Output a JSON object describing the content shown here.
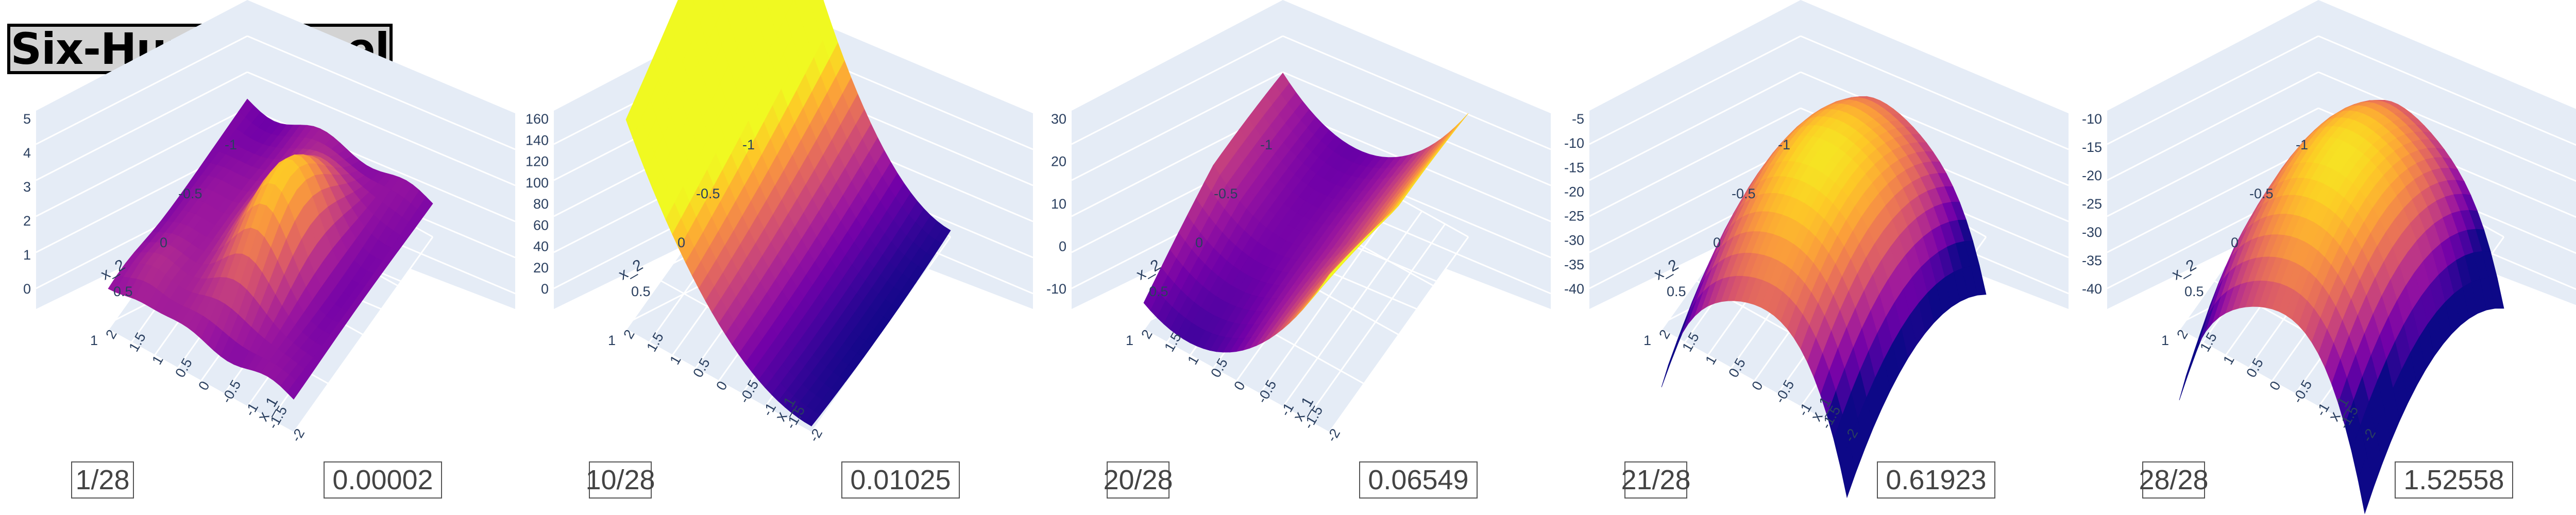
{
  "title": "Six-HumpCamel",
  "chart_data": [
    {
      "type": "surface",
      "step_label": "1/28",
      "value_label": "0.00002",
      "z_ticks": [
        "0",
        "1",
        "2",
        "3",
        "4",
        "5"
      ],
      "x2_label": "x_2",
      "x1_label": "x_1",
      "x2_ticks": [
        "-1",
        "-0.5",
        "0",
        "0.5",
        "1"
      ],
      "x1_ticks": [
        "-2",
        "-1.5",
        "-1",
        "-0.5",
        "0",
        "0.5",
        "1",
        "1.5",
        "2"
      ],
      "colorscale": "plasma"
    },
    {
      "type": "surface",
      "step_label": "10/28",
      "value_label": "0.01025",
      "z_ticks": [
        "0",
        "20",
        "40",
        "60",
        "80",
        "100",
        "120",
        "140",
        "160"
      ],
      "x2_label": "x_2",
      "x1_label": "x_1",
      "x2_ticks": [
        "-1",
        "-0.5",
        "0",
        "0.5",
        "1"
      ],
      "x1_ticks": [
        "-2",
        "-1.5",
        "-1",
        "-0.5",
        "0",
        "0.5",
        "1",
        "1.5",
        "2"
      ],
      "colorscale": "plasma"
    },
    {
      "type": "surface",
      "step_label": "20/28",
      "value_label": "0.06549",
      "z_ticks": [
        "-10",
        "0",
        "10",
        "20",
        "30"
      ],
      "x2_label": "x_2",
      "x1_label": "x_1",
      "x2_ticks": [
        "-1",
        "-0.5",
        "0",
        "0.5",
        "1"
      ],
      "x1_ticks": [
        "-2",
        "-1.5",
        "-1",
        "-0.5",
        "0",
        "0.5",
        "1",
        "1.5",
        "2"
      ],
      "colorscale": "plasma"
    },
    {
      "type": "surface",
      "step_label": "21/28",
      "value_label": "0.61923",
      "z_ticks": [
        "-40",
        "-35",
        "-30",
        "-25",
        "-20",
        "-15",
        "-10",
        "-5"
      ],
      "x2_label": "x_2",
      "x1_label": "x_1",
      "x2_ticks": [
        "-1",
        "-0.5",
        "0",
        "0.5",
        "1"
      ],
      "x1_ticks": [
        "-2",
        "-1.5",
        "-1",
        "-0.5",
        "0",
        "0.5",
        "1",
        "1.5",
        "2"
      ],
      "colorscale": "plasma"
    },
    {
      "type": "surface",
      "step_label": "28/28",
      "value_label": "1.52558",
      "z_ticks": [
        "-40",
        "-35",
        "-30",
        "-25",
        "-20",
        "-15",
        "-10"
      ],
      "x2_label": "x_2",
      "x1_label": "x_1",
      "x2_ticks": [
        "-1",
        "-0.5",
        "0",
        "0.5",
        "1"
      ],
      "x1_ticks": [
        "-2",
        "-1.5",
        "-1",
        "-0.5",
        "0",
        "0.5",
        "1",
        "1.5",
        "2"
      ],
      "colorscale": "plasma"
    }
  ],
  "colors": {
    "scene_background": "#e5ecf6",
    "grid": "#ffffff",
    "tick_text": "#2a3f5f",
    "plasma": [
      "#0d0887",
      "#46039f",
      "#7201a8",
      "#9c179e",
      "#bd3786",
      "#d8576b",
      "#ed7953",
      "#fb9f3a",
      "#fdca26",
      "#f0f921"
    ]
  }
}
